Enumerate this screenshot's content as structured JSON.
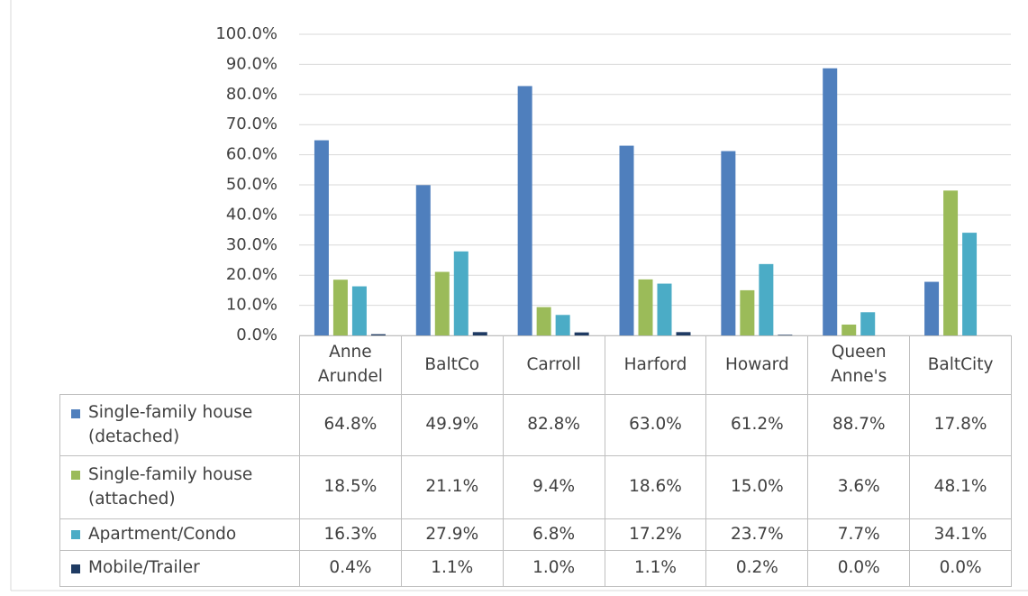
{
  "chart_data": {
    "type": "bar",
    "categories": [
      "Anne Arundel",
      "BaltCo",
      "Carroll",
      "Harford",
      "Howard",
      "Queen Anne's",
      "BaltCity"
    ],
    "series": [
      {
        "name": "Single-family house (detached)",
        "color": "#4f7fbd",
        "values": [
          64.8,
          49.9,
          82.8,
          63.0,
          61.2,
          88.7,
          17.8
        ],
        "value_labels": [
          "64.8%",
          "49.9%",
          "82.8%",
          "63.0%",
          "61.2%",
          "88.7%",
          "17.8%"
        ]
      },
      {
        "name": "Single-family house (attached)",
        "color": "#9bbb59",
        "values": [
          18.5,
          21.1,
          9.4,
          18.6,
          15.0,
          3.6,
          48.1
        ],
        "value_labels": [
          "18.5%",
          "21.1%",
          "9.4%",
          "18.6%",
          "15.0%",
          "3.6%",
          "48.1%"
        ]
      },
      {
        "name": "Apartment/Condo",
        "color": "#4bacc6",
        "values": [
          16.3,
          27.9,
          6.8,
          17.2,
          23.7,
          7.7,
          34.1
        ],
        "value_labels": [
          "16.3%",
          "27.9%",
          "6.8%",
          "17.2%",
          "23.7%",
          "7.7%",
          "34.1%"
        ]
      },
      {
        "name": "Mobile/Trailer",
        "color": "#1f3b63",
        "values": [
          0.4,
          1.1,
          1.0,
          1.1,
          0.2,
          0.0,
          0.0
        ],
        "value_labels": [
          "0.4%",
          "1.1%",
          "1.0%",
          "1.1%",
          "0.2%",
          "0.0%",
          "0.0%"
        ]
      }
    ],
    "ylim": [
      0,
      100
    ],
    "yticks": [
      {
        "value": 0,
        "label": "0.0%"
      },
      {
        "value": 10,
        "label": "10.0%"
      },
      {
        "value": 20,
        "label": "20.0%"
      },
      {
        "value": 30,
        "label": "30.0%"
      },
      {
        "value": 40,
        "label": "40.0%"
      },
      {
        "value": 50,
        "label": "50.0%"
      },
      {
        "value": 60,
        "label": "60.0%"
      },
      {
        "value": 70,
        "label": "70.0%"
      },
      {
        "value": 80,
        "label": "80.0%"
      },
      {
        "value": 90,
        "label": "90.0%"
      },
      {
        "value": 100,
        "label": "100.0%"
      }
    ],
    "grid": true
  }
}
